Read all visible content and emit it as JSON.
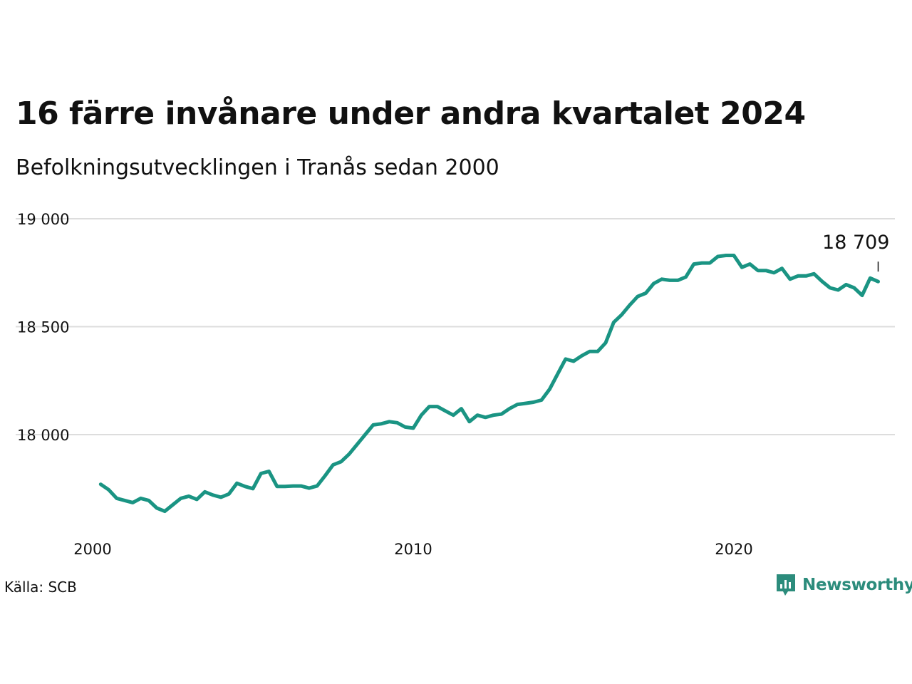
{
  "header": {
    "title": "16 färre invånare under andra kvartalet 2024",
    "subtitle": "Befolkningsutvecklingen i Tranås sedan 2000"
  },
  "footer": {
    "source": "Källa: SCB",
    "brand": "Newsworthy",
    "brand_icon": "newsworthy-logo-icon"
  },
  "colors": {
    "line": "#1a9483",
    "grid": "#dddddd",
    "brand": "#2c8c7c",
    "text": "#111111"
  },
  "chart_data": {
    "type": "line",
    "title": "16 färre invånare under andra kvartalet 2024",
    "subtitle": "Befolkningsutvecklingen i Tranås sedan 2000",
    "xlabel": "",
    "ylabel": "",
    "ylim": [
      17590,
      19030
    ],
    "xlim": [
      2000,
      2025.5
    ],
    "y_ticks": [
      18000,
      18500,
      19000
    ],
    "y_tick_labels": [
      "18 000",
      "18 500",
      "19 000"
    ],
    "x_ticks": [
      2000,
      2010,
      2020
    ],
    "x_tick_labels": [
      "2000",
      "2010",
      "2020"
    ],
    "grid": "horizontal",
    "end_label": "18 709",
    "series": [
      {
        "x": [
          2000.25,
          2000.5,
          2000.75,
          2001.0,
          2001.25,
          2001.5,
          2001.75,
          2002.0,
          2002.25,
          2002.5,
          2002.75,
          2003.0,
          2003.25,
          2003.5,
          2003.75,
          2004.0,
          2004.25,
          2004.5,
          2004.75,
          2005.0,
          2005.25,
          2005.5,
          2005.75,
          2006.0,
          2006.25,
          2006.5,
          2006.75,
          2007.0,
          2007.25,
          2007.5,
          2007.75,
          2008.0,
          2008.25,
          2008.5,
          2008.75,
          2009.0,
          2009.25,
          2009.5,
          2009.75,
          2010.0,
          2010.25,
          2010.5,
          2010.75,
          2011.0,
          2011.25,
          2011.5,
          2011.75,
          2012.0,
          2012.25,
          2012.5,
          2012.75,
          2013.0,
          2013.25,
          2013.5,
          2013.75,
          2014.0,
          2014.25,
          2014.5,
          2014.75,
          2015.0,
          2015.25,
          2015.5,
          2015.75,
          2016.0,
          2016.25,
          2016.5,
          2016.75,
          2017.0,
          2017.25,
          2017.5,
          2017.75,
          2018.0,
          2018.25,
          2018.5,
          2018.75,
          2019.0,
          2019.25,
          2019.5,
          2019.75,
          2020.0,
          2020.25,
          2020.5,
          2020.75,
          2021.0,
          2021.25,
          2021.5,
          2021.75,
          2022.0,
          2022.25,
          2022.5,
          2022.75,
          2023.0,
          2023.25,
          2023.5,
          2023.75,
          2024.0,
          2024.25,
          2024.5
        ],
        "values": [
          17770,
          17745,
          17705,
          17695,
          17685,
          17705,
          17695,
          17660,
          17645,
          17675,
          17705,
          17715,
          17700,
          17735,
          17720,
          17710,
          17725,
          17775,
          17760,
          17750,
          17820,
          17830,
          17760,
          17760,
          17762,
          17762,
          17752,
          17762,
          17810,
          17860,
          17875,
          17910,
          17955,
          18000,
          18045,
          18050,
          18060,
          18055,
          18035,
          18030,
          18090,
          18130,
          18130,
          18110,
          18090,
          18120,
          18060,
          18090,
          18080,
          18090,
          18095,
          18120,
          18140,
          18145,
          18150,
          18160,
          18210,
          18280,
          18350,
          18340,
          18365,
          18385,
          18385,
          18425,
          18520,
          18555,
          18600,
          18640,
          18655,
          18700,
          18720,
          18715,
          18715,
          18730,
          18790,
          18795,
          18795,
          18825,
          18830,
          18830,
          18775,
          18790,
          18760,
          18760,
          18750,
          18770,
          18720,
          18735,
          18735,
          18745,
          18710,
          18680,
          18670,
          18695,
          18680,
          18645,
          18725,
          18709
        ]
      }
    ]
  }
}
